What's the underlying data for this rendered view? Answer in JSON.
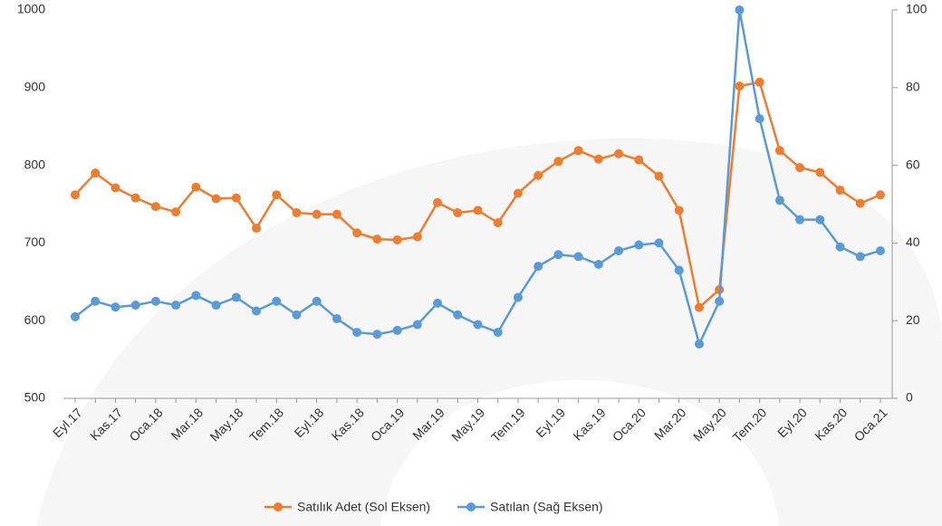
{
  "chart_data": {
    "type": "line",
    "categories": [
      "Eyl.17",
      null,
      "Kas.17",
      null,
      "Oca.18",
      null,
      "Mar.18",
      null,
      "May.18",
      null,
      "Tem.18",
      null,
      "Eyl.18",
      null,
      "Kas.18",
      null,
      "Oca.19",
      null,
      "Mar.19",
      null,
      "May.19",
      null,
      "Tem.19",
      null,
      "Eyl.19",
      null,
      "Kas.19",
      null,
      "Oca.20",
      null,
      "Mar.20",
      null,
      "May.20",
      null,
      "Tem.20",
      null,
      "Eyl.20",
      null,
      "Kas.20",
      null,
      "Oca.21"
    ],
    "series": [
      {
        "name": "Satılık Adet (Sol Eksen)",
        "color": "#ed7d31",
        "axis": "y",
        "values": [
          762,
          790,
          771,
          758,
          747,
          740,
          772,
          757,
          758,
          719,
          762,
          739,
          737,
          737,
          713,
          705,
          704,
          708,
          752,
          739,
          742,
          726,
          764,
          787,
          805,
          819,
          808,
          815,
          807,
          786,
          742,
          617,
          640,
          902,
          907,
          819,
          797,
          791,
          768,
          751,
          762
        ]
      },
      {
        "name": "Satılan (Sağ Eksen)",
        "color": "#5b9bd5",
        "axis": "y2",
        "values": [
          21,
          25,
          23.5,
          24,
          25,
          24,
          26.5,
          24,
          26,
          22.5,
          25,
          21.5,
          25,
          20.5,
          17,
          16.5,
          17.5,
          19,
          24.5,
          21.5,
          19,
          17,
          26,
          34,
          37,
          36.5,
          34.5,
          38,
          39.5,
          40,
          33,
          14,
          25,
          100,
          72,
          51,
          46,
          46,
          39,
          36.5,
          38
        ]
      }
    ],
    "ylim": [
      500,
      1000
    ],
    "yticks": [
      500,
      600,
      700,
      800,
      900,
      1000
    ],
    "y2lim": [
      0,
      100
    ],
    "y2ticks": [
      0,
      20,
      40,
      60,
      80,
      100
    ],
    "grid": false,
    "legend": "bottom"
  }
}
